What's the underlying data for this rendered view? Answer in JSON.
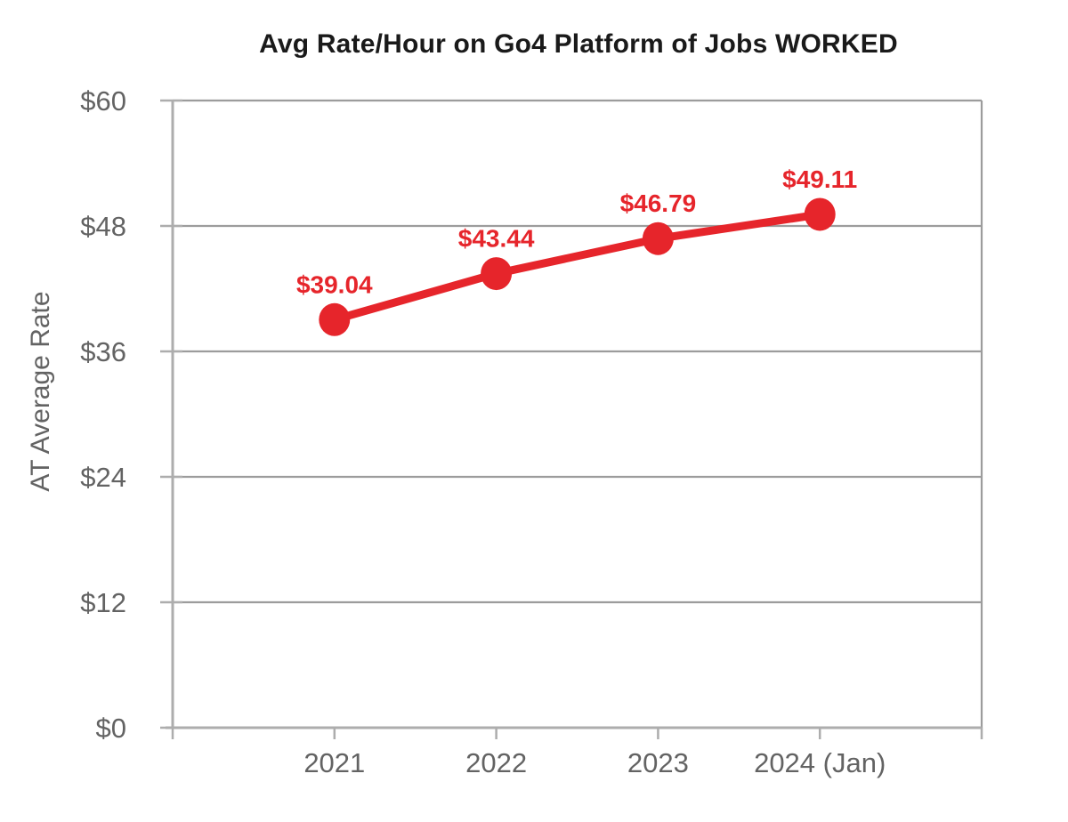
{
  "chart_data": {
    "type": "line",
    "title": "Avg Rate/Hour on Go4 Platform of Jobs WORKED",
    "categories": [
      "2021",
      "2022",
      "2023",
      "2024 (Jan)"
    ],
    "values": [
      39.04,
      43.44,
      46.79,
      49.11
    ],
    "point_labels": [
      "$39.04",
      "$43.44",
      "$46.79",
      "$49.11"
    ],
    "xlabel": "",
    "ylabel": "AT Average Rate",
    "ylim": [
      0,
      60
    ],
    "yticks": [
      0,
      12,
      24,
      36,
      48,
      60
    ],
    "ytick_labels": [
      "$0",
      "$12",
      "$24",
      "$36",
      "$48",
      "$60"
    ],
    "grid": "horizontal",
    "legend_position": "none",
    "marker": "circle",
    "plot_border": true
  },
  "colors": {
    "series": "#E6252B",
    "data_label": "#E6252B",
    "grid_line": "#9C9C9C",
    "axis_line": "#ADADAD",
    "tick_text": "#636363",
    "title_text": "#1A1A1A",
    "background": "#FFFFFF"
  }
}
